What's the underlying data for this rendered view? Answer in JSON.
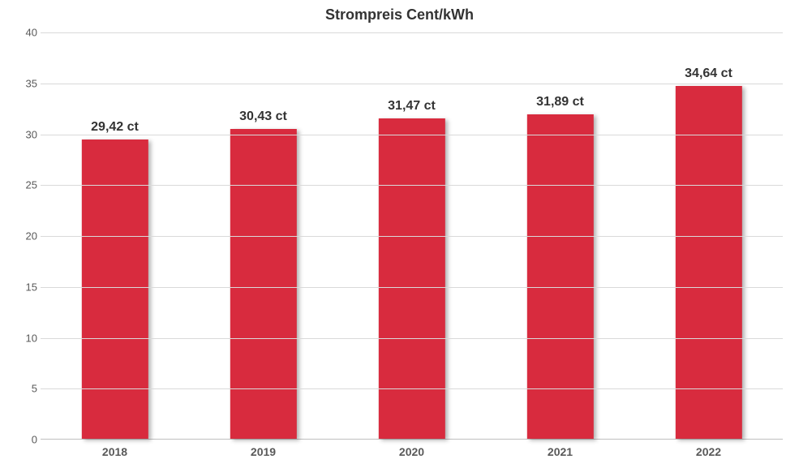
{
  "chart": {
    "type": "bar",
    "title": "Strompreis Cent/kWh",
    "title_fontsize": 18,
    "title_fontweight": 700,
    "title_color": "#333333",
    "background_color": "#ffffff",
    "grid_color": "#d9d9d9",
    "axis_line_color": "#bfbfbf",
    "tick_fontsize": 13,
    "tick_color": "#595959",
    "xlabel_fontsize": 14,
    "xlabel_fontweight": 700,
    "data_label_fontsize": 16,
    "data_label_fontweight": 700,
    "data_label_color": "#333333",
    "ylim": [
      0,
      40
    ],
    "ytick_step": 5,
    "yticks": [
      0,
      5,
      10,
      15,
      20,
      25,
      30,
      35,
      40
    ],
    "bar_color": "#d82b3e",
    "bar_width_ratio": 0.45,
    "bar_shadow": "3px 2px 5px rgba(0,0,0,0.3)",
    "categories": [
      "2018",
      "2019",
      "2020",
      "2021",
      "2022"
    ],
    "values": [
      29.42,
      30.43,
      31.47,
      31.89,
      34.64
    ],
    "value_labels": [
      "29,42 ct",
      "30,43 ct",
      "31,47 ct",
      "31,89 ct",
      "34,64 ct"
    ]
  }
}
